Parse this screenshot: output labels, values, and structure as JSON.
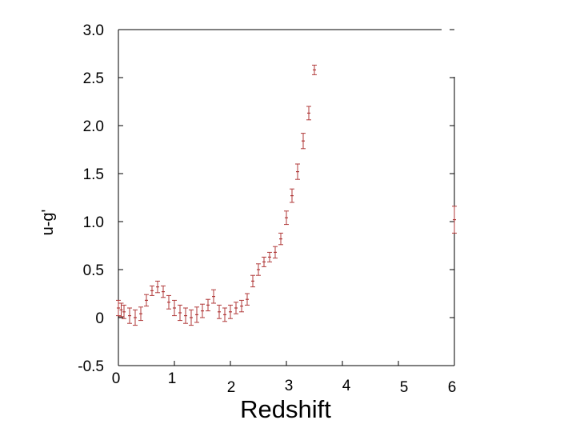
{
  "chart_data": {
    "type": "scatter",
    "title": "",
    "xlabel": "Redshift",
    "ylabel": "u-g'",
    "xlim": [
      0,
      6
    ],
    "ylim": [
      -0.5,
      3.0
    ],
    "xticks": [
      "0",
      "1",
      "2",
      "3",
      "4",
      "5",
      "6"
    ],
    "yticks": [
      "-0.5",
      "0",
      "0.5",
      "1.0",
      "1.5",
      "2.0",
      "2.5",
      "3.0"
    ],
    "grid": false,
    "legend": "none",
    "marker_color": "#b03a3a",
    "series": [
      {
        "x": [
          0.0,
          0.05,
          0.1,
          0.2,
          0.3,
          0.4,
          0.5,
          0.6,
          0.7,
          0.8,
          0.9,
          1.0,
          1.1,
          1.2,
          1.3,
          1.4,
          1.5,
          1.6,
          1.7,
          1.8,
          1.9,
          2.0,
          2.1,
          2.2,
          2.3,
          2.4,
          2.5,
          2.6,
          2.7,
          2.8,
          2.9,
          3.0,
          3.1,
          3.2,
          3.3,
          3.4,
          3.5,
          6.0
        ],
        "y": [
          0.1,
          0.08,
          0.06,
          0.02,
          0.0,
          0.04,
          0.18,
          0.28,
          0.32,
          0.27,
          0.16,
          0.1,
          0.05,
          0.02,
          0.0,
          0.03,
          0.07,
          0.13,
          0.22,
          0.06,
          0.03,
          0.06,
          0.1,
          0.12,
          0.19,
          0.38,
          0.5,
          0.58,
          0.63,
          0.68,
          0.82,
          1.04,
          1.27,
          1.52,
          1.84,
          2.13,
          2.58,
          1.02
        ],
        "err": [
          0.08,
          0.07,
          0.07,
          0.08,
          0.08,
          0.07,
          0.06,
          0.05,
          0.06,
          0.06,
          0.07,
          0.08,
          0.08,
          0.08,
          0.08,
          0.08,
          0.07,
          0.06,
          0.07,
          0.07,
          0.07,
          0.07,
          0.06,
          0.06,
          0.06,
          0.06,
          0.06,
          0.05,
          0.05,
          0.06,
          0.06,
          0.07,
          0.07,
          0.08,
          0.08,
          0.07,
          0.05,
          0.14
        ]
      }
    ]
  }
}
